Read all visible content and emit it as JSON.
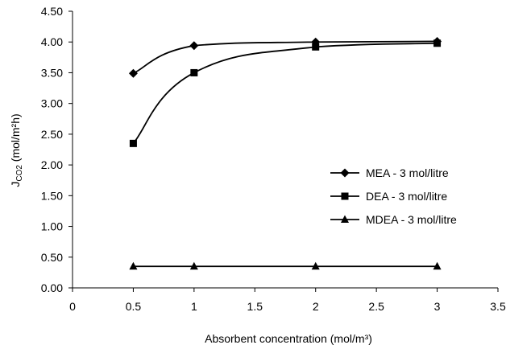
{
  "chart_data": {
    "type": "line",
    "title": "",
    "xlabel": "Absorbent concentration (mol/m³)",
    "ylabel": {
      "main": "J",
      "sub": "CO2",
      "unit": " (mol/m²h)"
    },
    "xlim": [
      0,
      3.5
    ],
    "ylim": [
      0,
      4.5
    ],
    "x_ticks": [
      "0",
      "0.5",
      "1",
      "1.5",
      "2",
      "2.5",
      "3",
      "3.5"
    ],
    "y_ticks": [
      "0.00",
      "0.50",
      "1.00",
      "1.50",
      "2.00",
      "2.50",
      "3.00",
      "3.50",
      "4.00",
      "4.50"
    ],
    "grid": false,
    "legend_position": "right",
    "x": [
      0.5,
      1,
      2,
      3
    ],
    "series": [
      {
        "name": "MEA - 3 mol/litre",
        "values": [
          3.49,
          3.94,
          4.0,
          4.01
        ],
        "marker": "diamond",
        "color": "#000000"
      },
      {
        "name": "DEA - 3 mol/litre",
        "values": [
          2.35,
          3.5,
          3.92,
          3.98
        ],
        "marker": "square",
        "color": "#000000"
      },
      {
        "name": "MDEA - 3 mol/litre",
        "values": [
          0.35,
          0.35,
          0.35,
          0.35
        ],
        "marker": "triangle",
        "color": "#000000"
      }
    ]
  }
}
